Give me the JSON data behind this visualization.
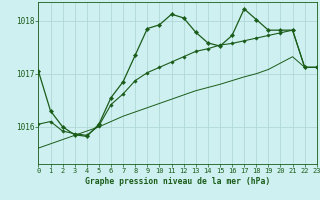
{
  "title": "Graphe pression niveau de la mer (hPa)",
  "bg_color": "#cff0f0",
  "plot_bg_color": "#cff0f0",
  "bottom_bar_color": "#1a6b1a",
  "grid_color": "#b0d8d8",
  "line_color": "#1a5c1a",
  "x_min": 0,
  "x_max": 23,
  "y_min": 1015.3,
  "y_max": 1018.35,
  "yticks": [
    1016,
    1017,
    1018
  ],
  "xticks": [
    0,
    1,
    2,
    3,
    4,
    5,
    6,
    7,
    8,
    9,
    10,
    11,
    12,
    13,
    14,
    15,
    16,
    17,
    18,
    19,
    20,
    21,
    22,
    23
  ],
  "series1_x": [
    0,
    1,
    2,
    3,
    4,
    5,
    6,
    7,
    8,
    9,
    10,
    11,
    12,
    13,
    14,
    15,
    16,
    17,
    18,
    19,
    20,
    21,
    22,
    23
  ],
  "series1_y": [
    1017.05,
    1016.3,
    1016.0,
    1015.85,
    1015.82,
    1016.05,
    1016.55,
    1016.85,
    1017.35,
    1017.85,
    1017.92,
    1018.12,
    1018.05,
    1017.78,
    1017.58,
    1017.52,
    1017.72,
    1018.22,
    1018.02,
    1017.82,
    1017.82,
    1017.82,
    1017.12,
    1017.12
  ],
  "series2_x": [
    0,
    1,
    2,
    3,
    4,
    5,
    6,
    7,
    8,
    9,
    10,
    11,
    12,
    13,
    14,
    15,
    16,
    17,
    18,
    19,
    20,
    21,
    22,
    23
  ],
  "series2_y": [
    1016.05,
    1016.1,
    1015.92,
    1015.87,
    1015.84,
    1016.02,
    1016.42,
    1016.62,
    1016.87,
    1017.02,
    1017.12,
    1017.22,
    1017.32,
    1017.42,
    1017.47,
    1017.54,
    1017.57,
    1017.62,
    1017.67,
    1017.72,
    1017.77,
    1017.82,
    1017.12,
    1017.12
  ],
  "series3_x": [
    0,
    1,
    2,
    3,
    4,
    5,
    6,
    7,
    8,
    9,
    10,
    11,
    12,
    13,
    14,
    15,
    16,
    17,
    18,
    19,
    20,
    21,
    22,
    23
  ],
  "series3_y": [
    1015.6,
    1015.68,
    1015.76,
    1015.84,
    1015.92,
    1016.0,
    1016.1,
    1016.2,
    1016.28,
    1016.36,
    1016.44,
    1016.52,
    1016.6,
    1016.68,
    1016.74,
    1016.8,
    1016.87,
    1016.94,
    1017.0,
    1017.08,
    1017.2,
    1017.32,
    1017.12,
    1017.12
  ]
}
